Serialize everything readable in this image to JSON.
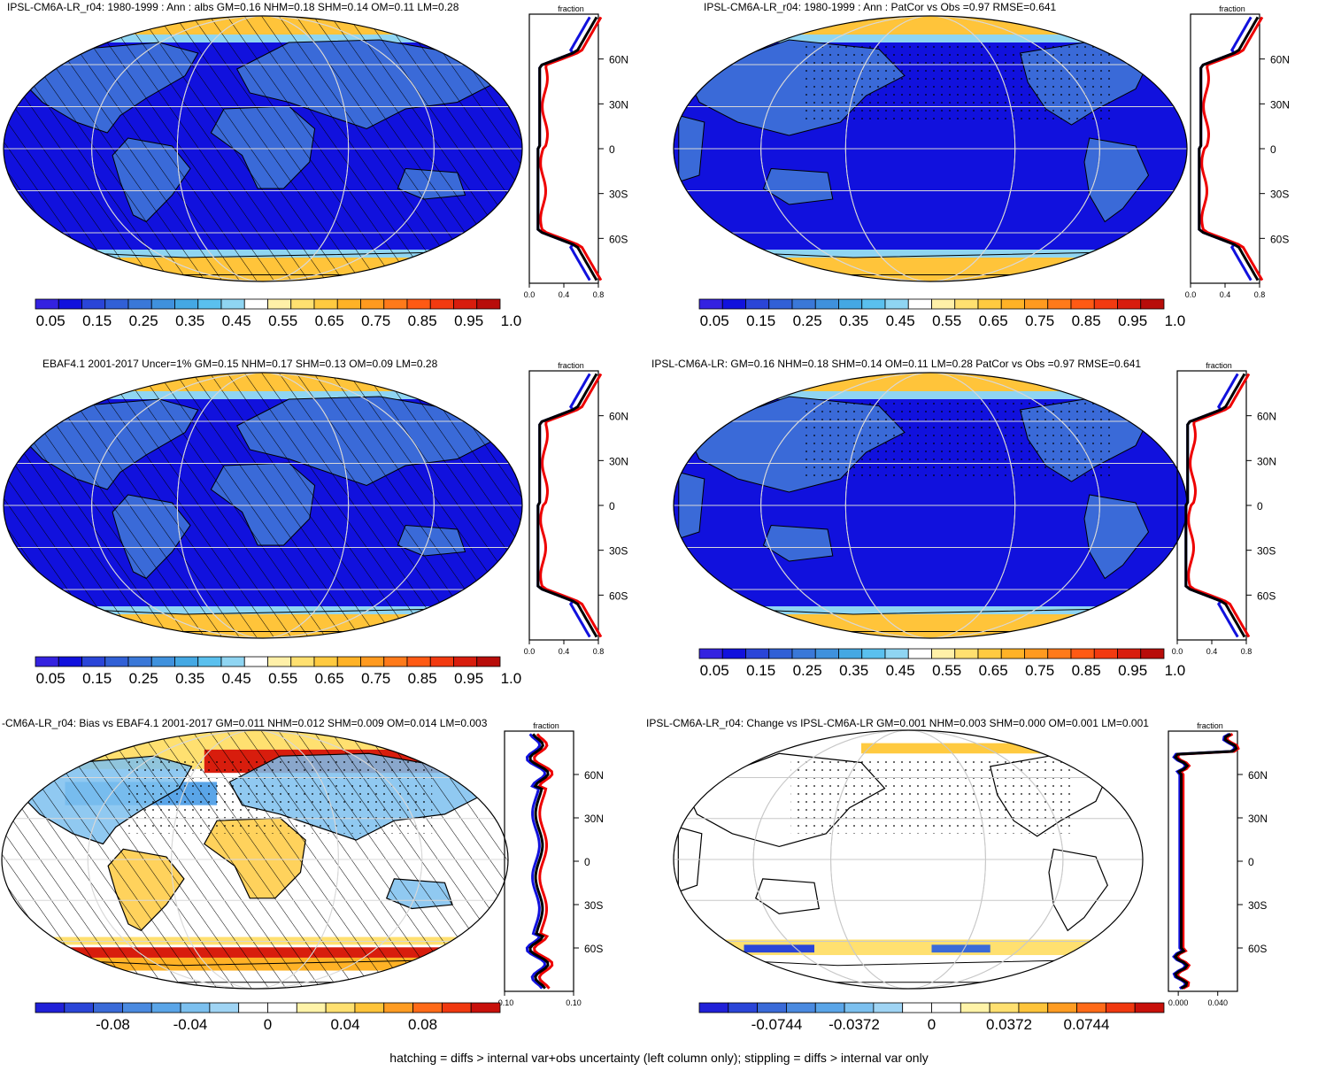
{
  "footer": "hatching = diffs > internal var+obs uncertainty (left column only); stippling = diffs > internal var only",
  "panels": [
    {
      "id": "p1",
      "title": "IPSL-CM6A-LR_r04: 1980-1999 : Ann : albs GM=0.16 NHM=0.18 SHM=0.14 OM=0.11 LM=0.28",
      "map_style": "abs",
      "center": "atlantic",
      "hatch": true,
      "stipple": false,
      "zonal": {
        "label": "fraction",
        "xticks": [
          "0.0",
          "0.4",
          "0.8"
        ],
        "xrange": [
          0,
          0.8
        ],
        "lat_labels": [
          "60N",
          "30N",
          "0",
          "30S",
          "60S"
        ],
        "type": "abs"
      },
      "colorbar": {
        "type": "abs",
        "labels": [
          "0.05",
          "0.15",
          "0.25",
          "0.35",
          "0.45",
          "0.55",
          "0.65",
          "0.75",
          "0.85",
          "0.95",
          "1.05"
        ]
      }
    },
    {
      "id": "p2",
      "title": "IPSL-CM6A-LR_r04: 1980-1999 : Ann : PatCor vs Obs =0.97 RMSE=0.641",
      "map_style": "abs",
      "center": "pacific",
      "hatch": false,
      "stipple": true,
      "zonal": {
        "label": "fraction",
        "xticks": [
          "0.0",
          "0.4",
          "0.8"
        ],
        "xrange": [
          0,
          0.8
        ],
        "lat_labels": [
          "60N",
          "30N",
          "0",
          "30S",
          "60S"
        ],
        "type": "abs"
      },
      "colorbar": {
        "type": "abs",
        "labels": [
          "0.05",
          "0.15",
          "0.25",
          "0.35",
          "0.45",
          "0.55",
          "0.65",
          "0.75",
          "0.85",
          "0.95",
          "1.05"
        ]
      }
    },
    {
      "id": "p3",
      "title": "EBAF4.1 2001-2017 Uncer=1% GM=0.15 NHM=0.17 SHM=0.13 OM=0.09 LM=0.28",
      "map_style": "abs",
      "center": "atlantic",
      "hatch": true,
      "stipple": false,
      "zonal": {
        "label": "fraction",
        "xticks": [
          "0.0",
          "0.4",
          "0.8"
        ],
        "xrange": [
          0,
          0.8
        ],
        "lat_labels": [
          "60N",
          "30N",
          "0",
          "30S",
          "60S"
        ],
        "type": "abs"
      },
      "colorbar": {
        "type": "abs",
        "labels": [
          "0.05",
          "0.15",
          "0.25",
          "0.35",
          "0.45",
          "0.55",
          "0.65",
          "0.75",
          "0.85",
          "0.95",
          "1.05"
        ]
      }
    },
    {
      "id": "p4",
      "title": "IPSL-CM6A-LR: GM=0.16 NHM=0.18 SHM=0.14 OM=0.11 LM=0.28 PatCor vs Obs =0.97 RMSE=0.641",
      "map_style": "abs",
      "center": "pacific",
      "hatch": false,
      "stipple": true,
      "zonal": {
        "label": "fraction",
        "xticks": [
          "0.0",
          "0.4",
          "0.8"
        ],
        "xrange": [
          0,
          0.8
        ],
        "lat_labels": [
          "60N",
          "30N",
          "0",
          "30S",
          "60S"
        ],
        "type": "abs"
      },
      "colorbar": {
        "type": "abs",
        "labels": [
          "0.05",
          "0.15",
          "0.25",
          "0.35",
          "0.45",
          "0.55",
          "0.65",
          "0.75",
          "0.85",
          "0.95",
          "1.05"
        ]
      }
    },
    {
      "id": "p5",
      "title": "-CM6A-LR_r04: Bias vs EBAF4.1 2001-2017 GM=0.011 NHM=0.012 SHM=0.009 OM=0.014 LM=0.003",
      "map_style": "bias",
      "center": "atlantic",
      "hatch": true,
      "stipple": true,
      "zonal": {
        "label": "fraction",
        "xticks": [
          "-0.10",
          "0.10"
        ],
        "xrange": [
          -0.1,
          0.1
        ],
        "lat_labels": [
          "60N",
          "30N",
          "0",
          "30S",
          "60S"
        ],
        "type": "bias"
      },
      "colorbar": {
        "type": "div",
        "labels": [
          "-0.08",
          "-0.04",
          "0",
          "0.04",
          "0.08"
        ]
      }
    },
    {
      "id": "p6",
      "title": "IPSL-CM6A-LR_r04: Change vs IPSL-CM6A-LR GM=0.001 NHM=0.003 SHM=0.000 OM=0.001 LM=0.001",
      "map_style": "change",
      "center": "pacific",
      "hatch": false,
      "stipple": true,
      "zonal": {
        "label": "fraction",
        "xticks": [
          "0.000",
          "0.040"
        ],
        "xrange": [
          -0.01,
          0.06
        ],
        "lat_labels": [
          "60N",
          "30N",
          "0",
          "30S",
          "60S"
        ],
        "type": "change"
      },
      "colorbar": {
        "type": "div",
        "labels": [
          "-0.0744",
          "-0.0372",
          "0",
          "0.0372",
          "0.0744"
        ]
      }
    }
  ],
  "colors": {
    "abs": [
      "#3422e0",
      "#1111dd",
      "#2a45d8",
      "#3160d6",
      "#3a78d8",
      "#3f91dd",
      "#44a8e3",
      "#5ac0ee",
      "#8fd5f2",
      "#ffffff",
      "#fff0a8",
      "#ffe070",
      "#ffca40",
      "#ffb226",
      "#ff9a1f",
      "#ff7a1a",
      "#ff5a14",
      "#f23a10",
      "#d81d0d",
      "#b80d0a"
    ],
    "div": [
      "#2020d8",
      "#2a45d8",
      "#3a6ad8",
      "#4a8ae0",
      "#5aa5e8",
      "#7cc0ef",
      "#9fd4f4",
      "#ffffff",
      "#ffffff",
      "#fff3a8",
      "#ffe070",
      "#ffc43a",
      "#ff9c22",
      "#ff6a18",
      "#f0380f",
      "#c8100a"
    ]
  }
}
